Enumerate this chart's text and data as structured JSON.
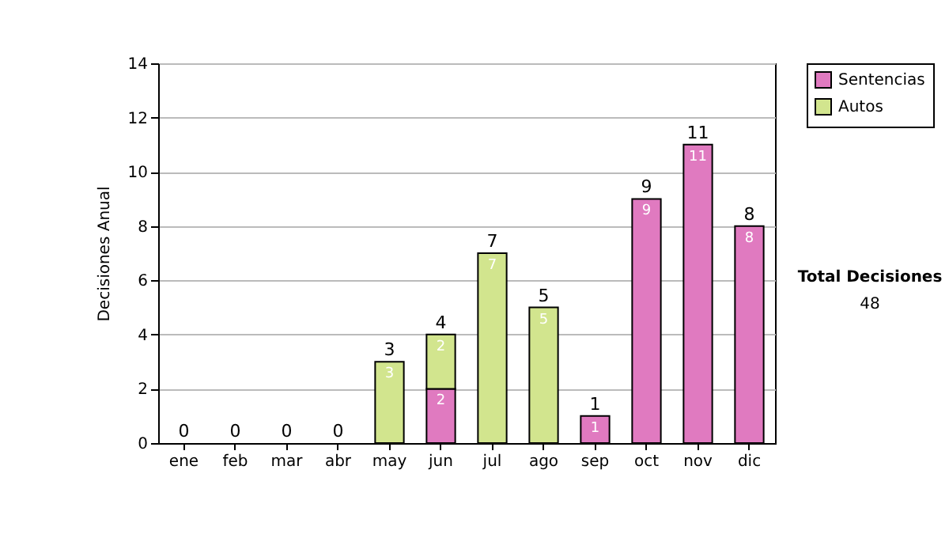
{
  "chart_data": {
    "type": "bar",
    "stacked": true,
    "ylabel": "Decisiones Anual",
    "categories": [
      "ene",
      "feb",
      "mar",
      "abr",
      "may",
      "jun",
      "jul",
      "ago",
      "sep",
      "oct",
      "nov",
      "dic"
    ],
    "series": [
      {
        "name": "Sentencias",
        "color": "#e07ac0",
        "values": [
          null,
          null,
          null,
          null,
          null,
          2,
          null,
          null,
          1,
          9,
          11,
          8
        ]
      },
      {
        "name": "Autos",
        "color": "#d2e58e",
        "values": [
          null,
          null,
          null,
          null,
          3,
          2,
          7,
          5,
          null,
          null,
          null,
          null
        ]
      }
    ],
    "totals": [
      "0",
      "0",
      "0",
      "0",
      "3",
      "4",
      "7",
      "5",
      "1",
      "9",
      "11",
      "8"
    ],
    "data_labels": true,
    "ylim": [
      0,
      14
    ],
    "yticks": [
      0,
      2,
      4,
      6,
      8,
      10,
      12,
      14
    ],
    "grid": "y",
    "legend": "right",
    "annotations": [
      "Total Decisiones",
      "48"
    ]
  }
}
